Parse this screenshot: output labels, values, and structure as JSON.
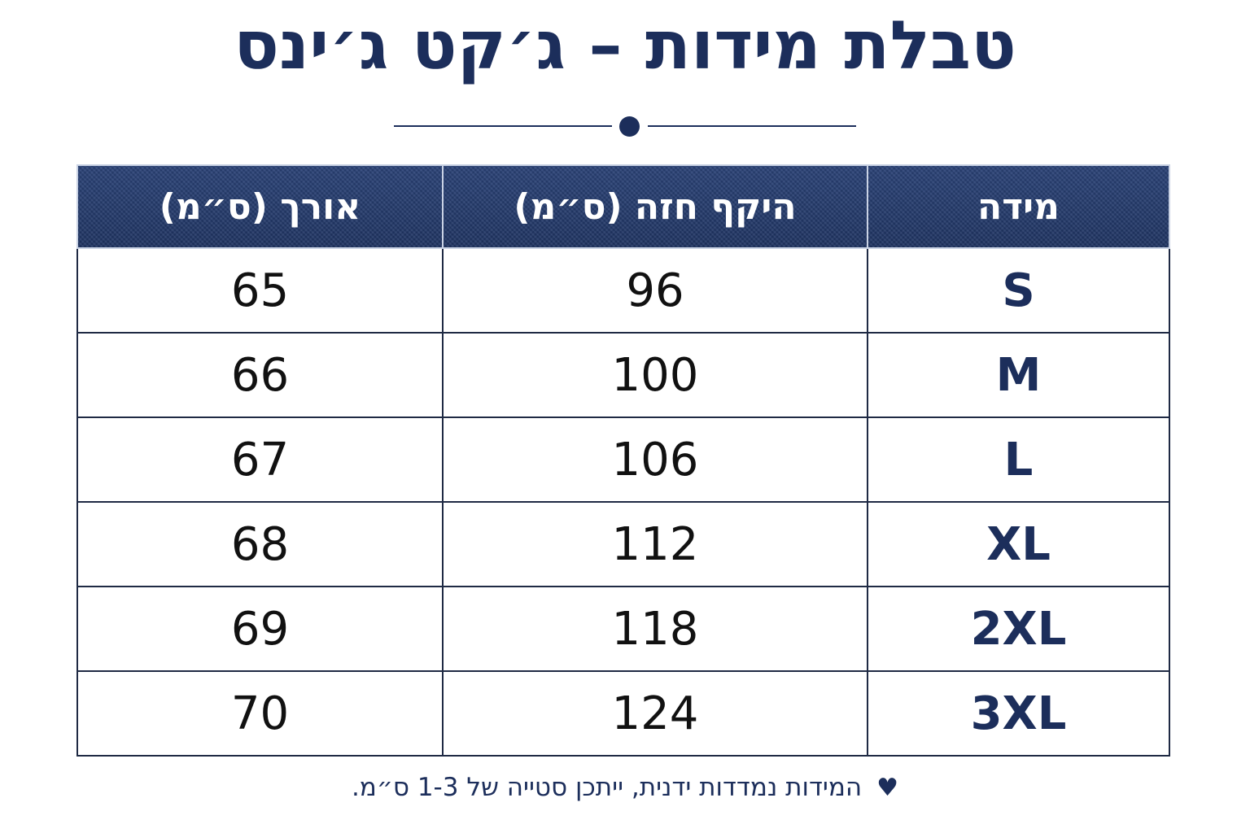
{
  "title": "טבלת מידות – ג׳קט ג׳ינס",
  "table": {
    "headers": {
      "size": "מידה",
      "chest": "היקף חזה (ס״מ)",
      "length": "אורך (ס״מ)"
    },
    "rows": [
      {
        "size": "S",
        "chest": "96",
        "length": "65"
      },
      {
        "size": "M",
        "chest": "100",
        "length": "66"
      },
      {
        "size": "L",
        "chest": "106",
        "length": "67"
      },
      {
        "size": "XL",
        "chest": "112",
        "length": "68"
      },
      {
        "size": "2XL",
        "chest": "118",
        "length": "69"
      },
      {
        "size": "3XL",
        "chest": "124",
        "length": "70"
      }
    ]
  },
  "footnote": {
    "icon": "heart-icon",
    "text": "המידות נמדדות ידנית, ייתכן סטייה של 1-3 ס״מ."
  },
  "colors": {
    "primary": "#1c2e5b",
    "header_background": "#233a6b",
    "header_text": "#ffffff",
    "cell_text": "#111111",
    "border": "#1f2a44"
  }
}
